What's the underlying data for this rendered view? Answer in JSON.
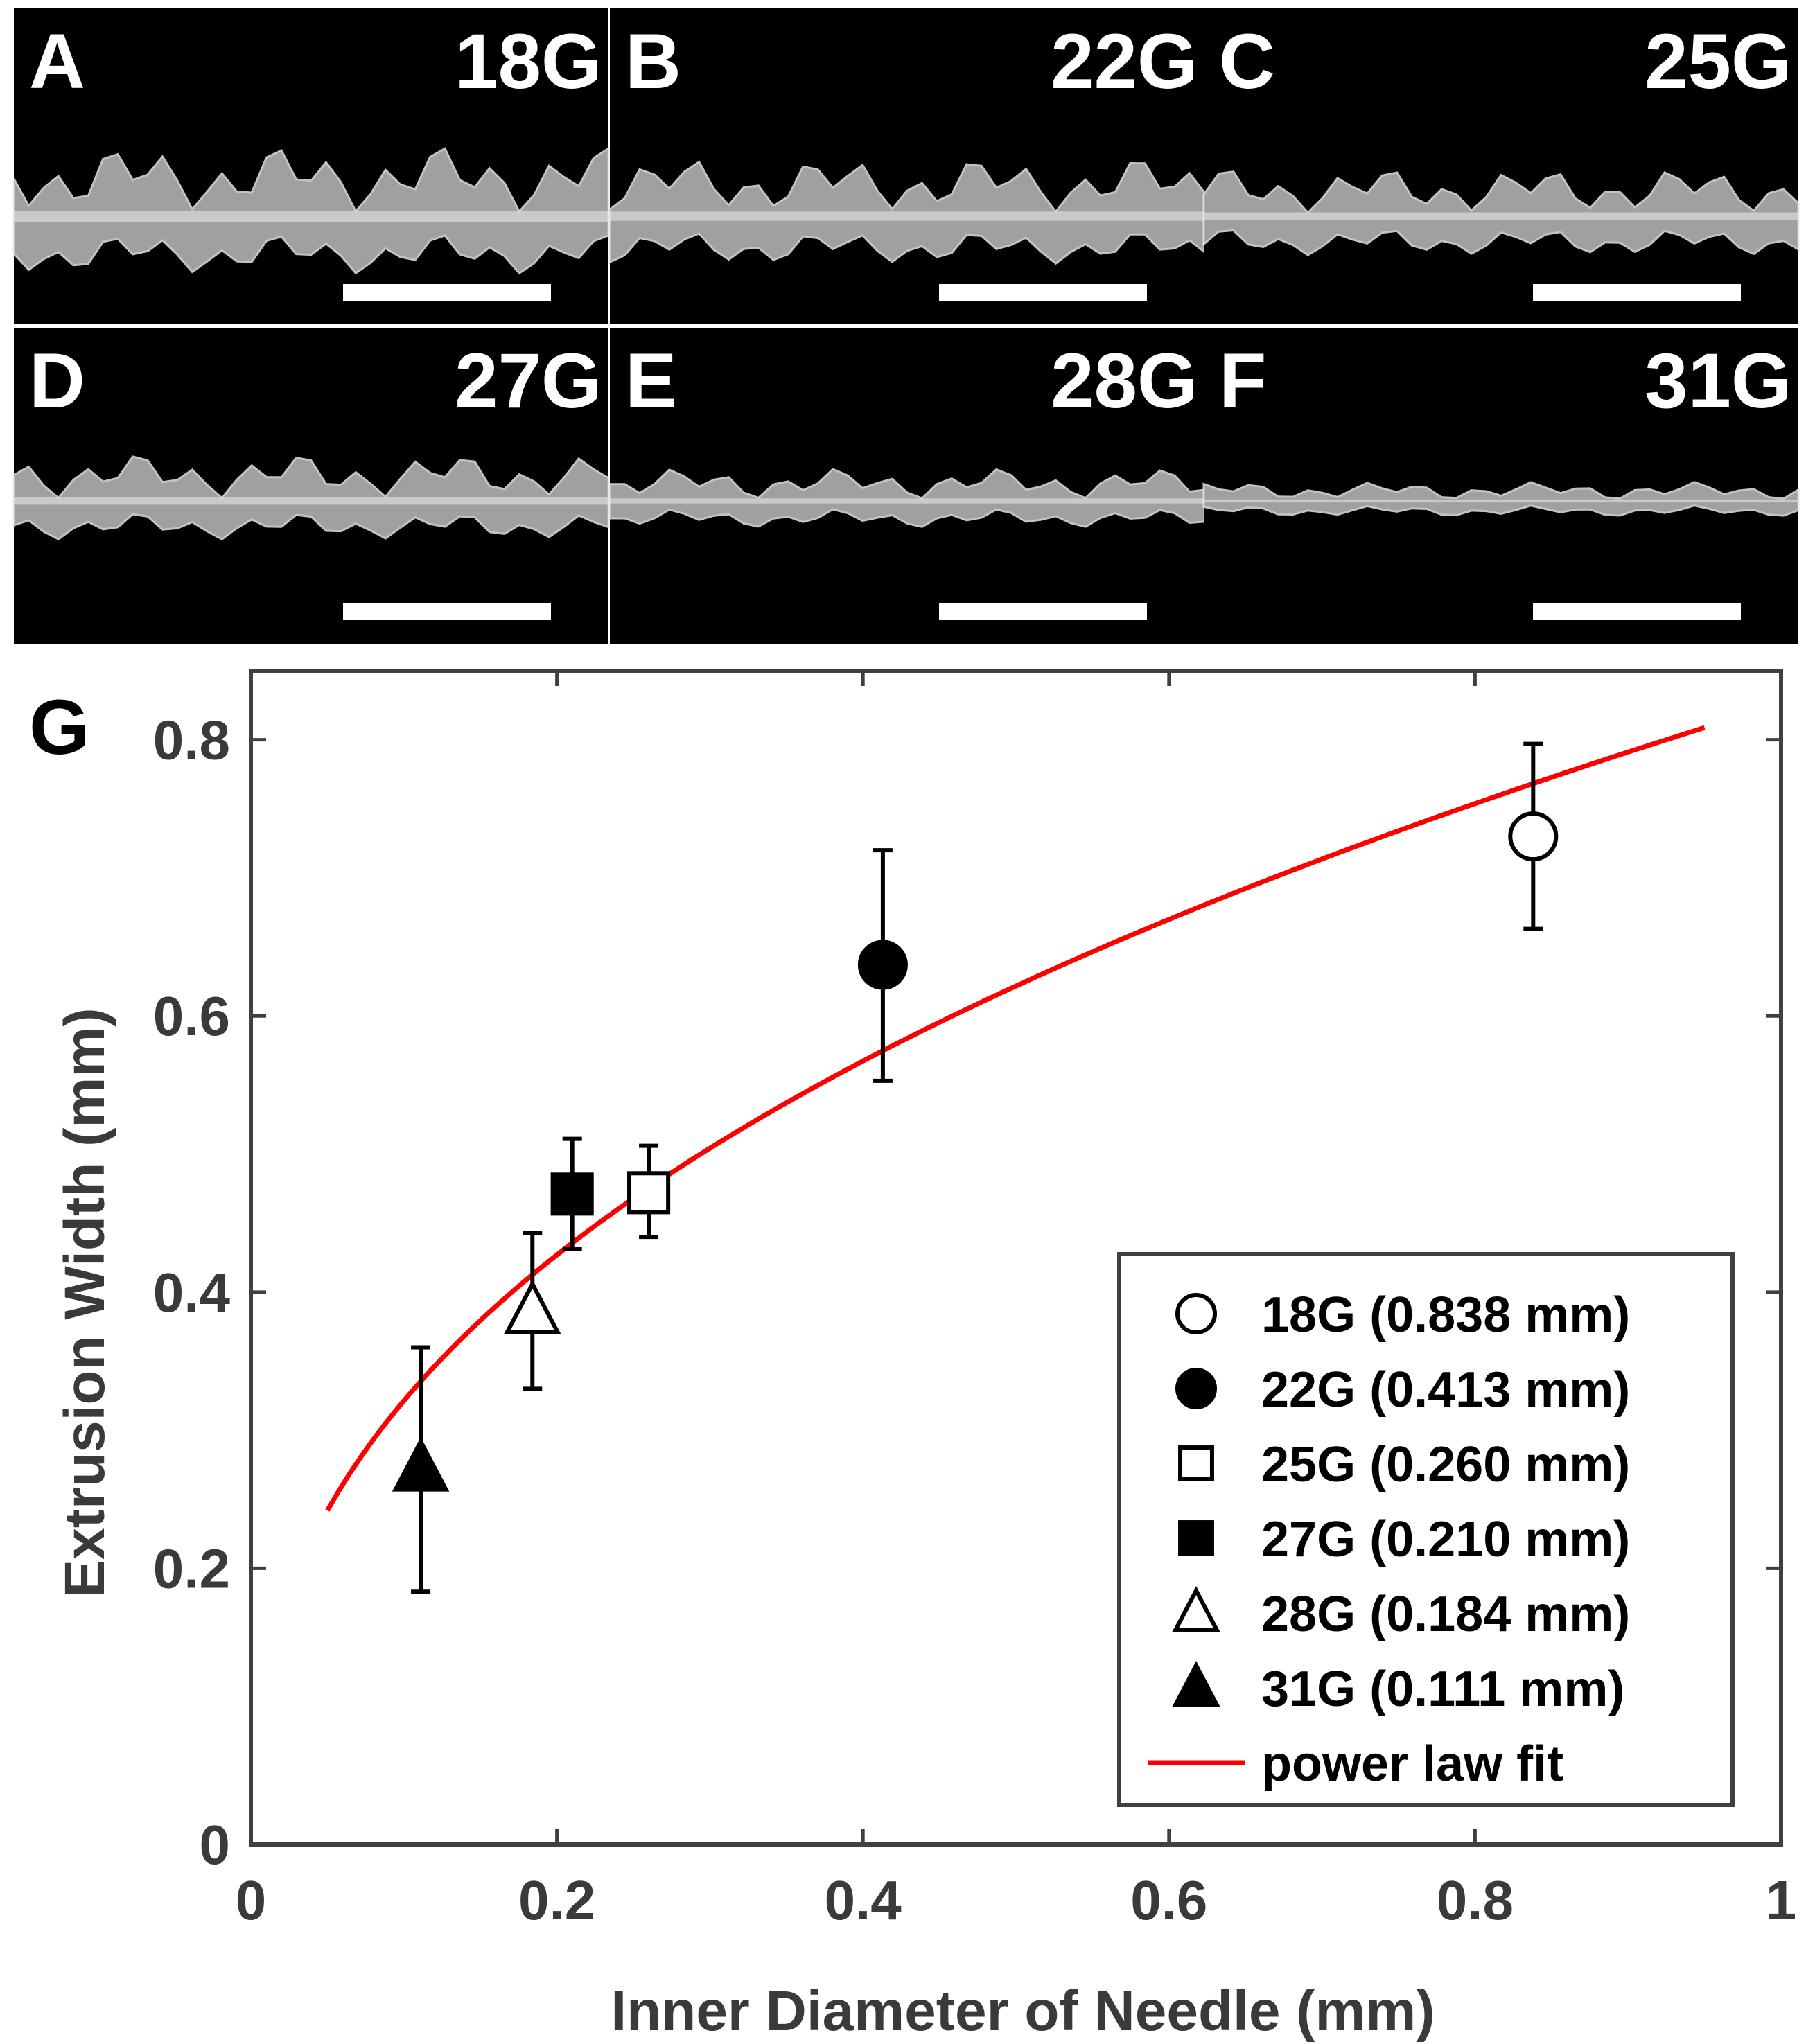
{
  "panels": [
    {
      "letter": "A",
      "gauge": "18G",
      "thickness": 1.0
    },
    {
      "letter": "B",
      "gauge": "22G",
      "thickness": 0.8
    },
    {
      "letter": "C",
      "gauge": "25G",
      "thickness": 0.62
    },
    {
      "letter": "D",
      "gauge": "27G",
      "thickness": 0.6
    },
    {
      "letter": "E",
      "gauge": "28G",
      "thickness": 0.35
    },
    {
      "letter": "F",
      "gauge": "31G",
      "thickness": 0.12
    }
  ],
  "chart_data": {
    "panel_label": "G",
    "type": "scatter",
    "xlabel": "Inner Diameter of Needle (mm)",
    "ylabel": "Extrusion Width (mm)",
    "xlim": [
      0,
      1
    ],
    "ylim": [
      0,
      0.85
    ],
    "xticks": [
      "0",
      "0.2",
      "0.4",
      "0.6",
      "0.8",
      "1"
    ],
    "yticks": [
      "0",
      "0.2",
      "0.4",
      "0.6",
      "0.8"
    ],
    "grid": false,
    "legend_position": "bottom-right",
    "series": [
      {
        "name": "18G (0.838 mm)",
        "marker": "circle-open",
        "x": 0.838,
        "y": 0.73,
        "err_low": 0.663,
        "err_high": 0.797
      },
      {
        "name": "22G (0.413 mm)",
        "marker": "circle-filled",
        "x": 0.413,
        "y": 0.637,
        "err_low": 0.553,
        "err_high": 0.72
      },
      {
        "name": "25G (0.260 mm)",
        "marker": "square-open",
        "x": 0.26,
        "y": 0.472,
        "err_low": 0.44,
        "err_high": 0.506
      },
      {
        "name": "27G (0.210 mm)",
        "marker": "square-filled",
        "x": 0.21,
        "y": 0.471,
        "err_low": 0.431,
        "err_high": 0.511
      },
      {
        "name": "28G (0.184 mm)",
        "marker": "triangle-open",
        "x": 0.184,
        "y": 0.386,
        "err_low": 0.33,
        "err_high": 0.443
      },
      {
        "name": "31G (0.111 mm)",
        "marker": "triangle-filled",
        "x": 0.111,
        "y": 0.272,
        "err_low": 0.183,
        "err_high": 0.36
      }
    ],
    "fit": {
      "name": "power law fit",
      "color": "#ff0000",
      "x_start": 0.05,
      "x_end": 0.95,
      "coefficient": 0.826,
      "exponent": 0.41
    }
  }
}
